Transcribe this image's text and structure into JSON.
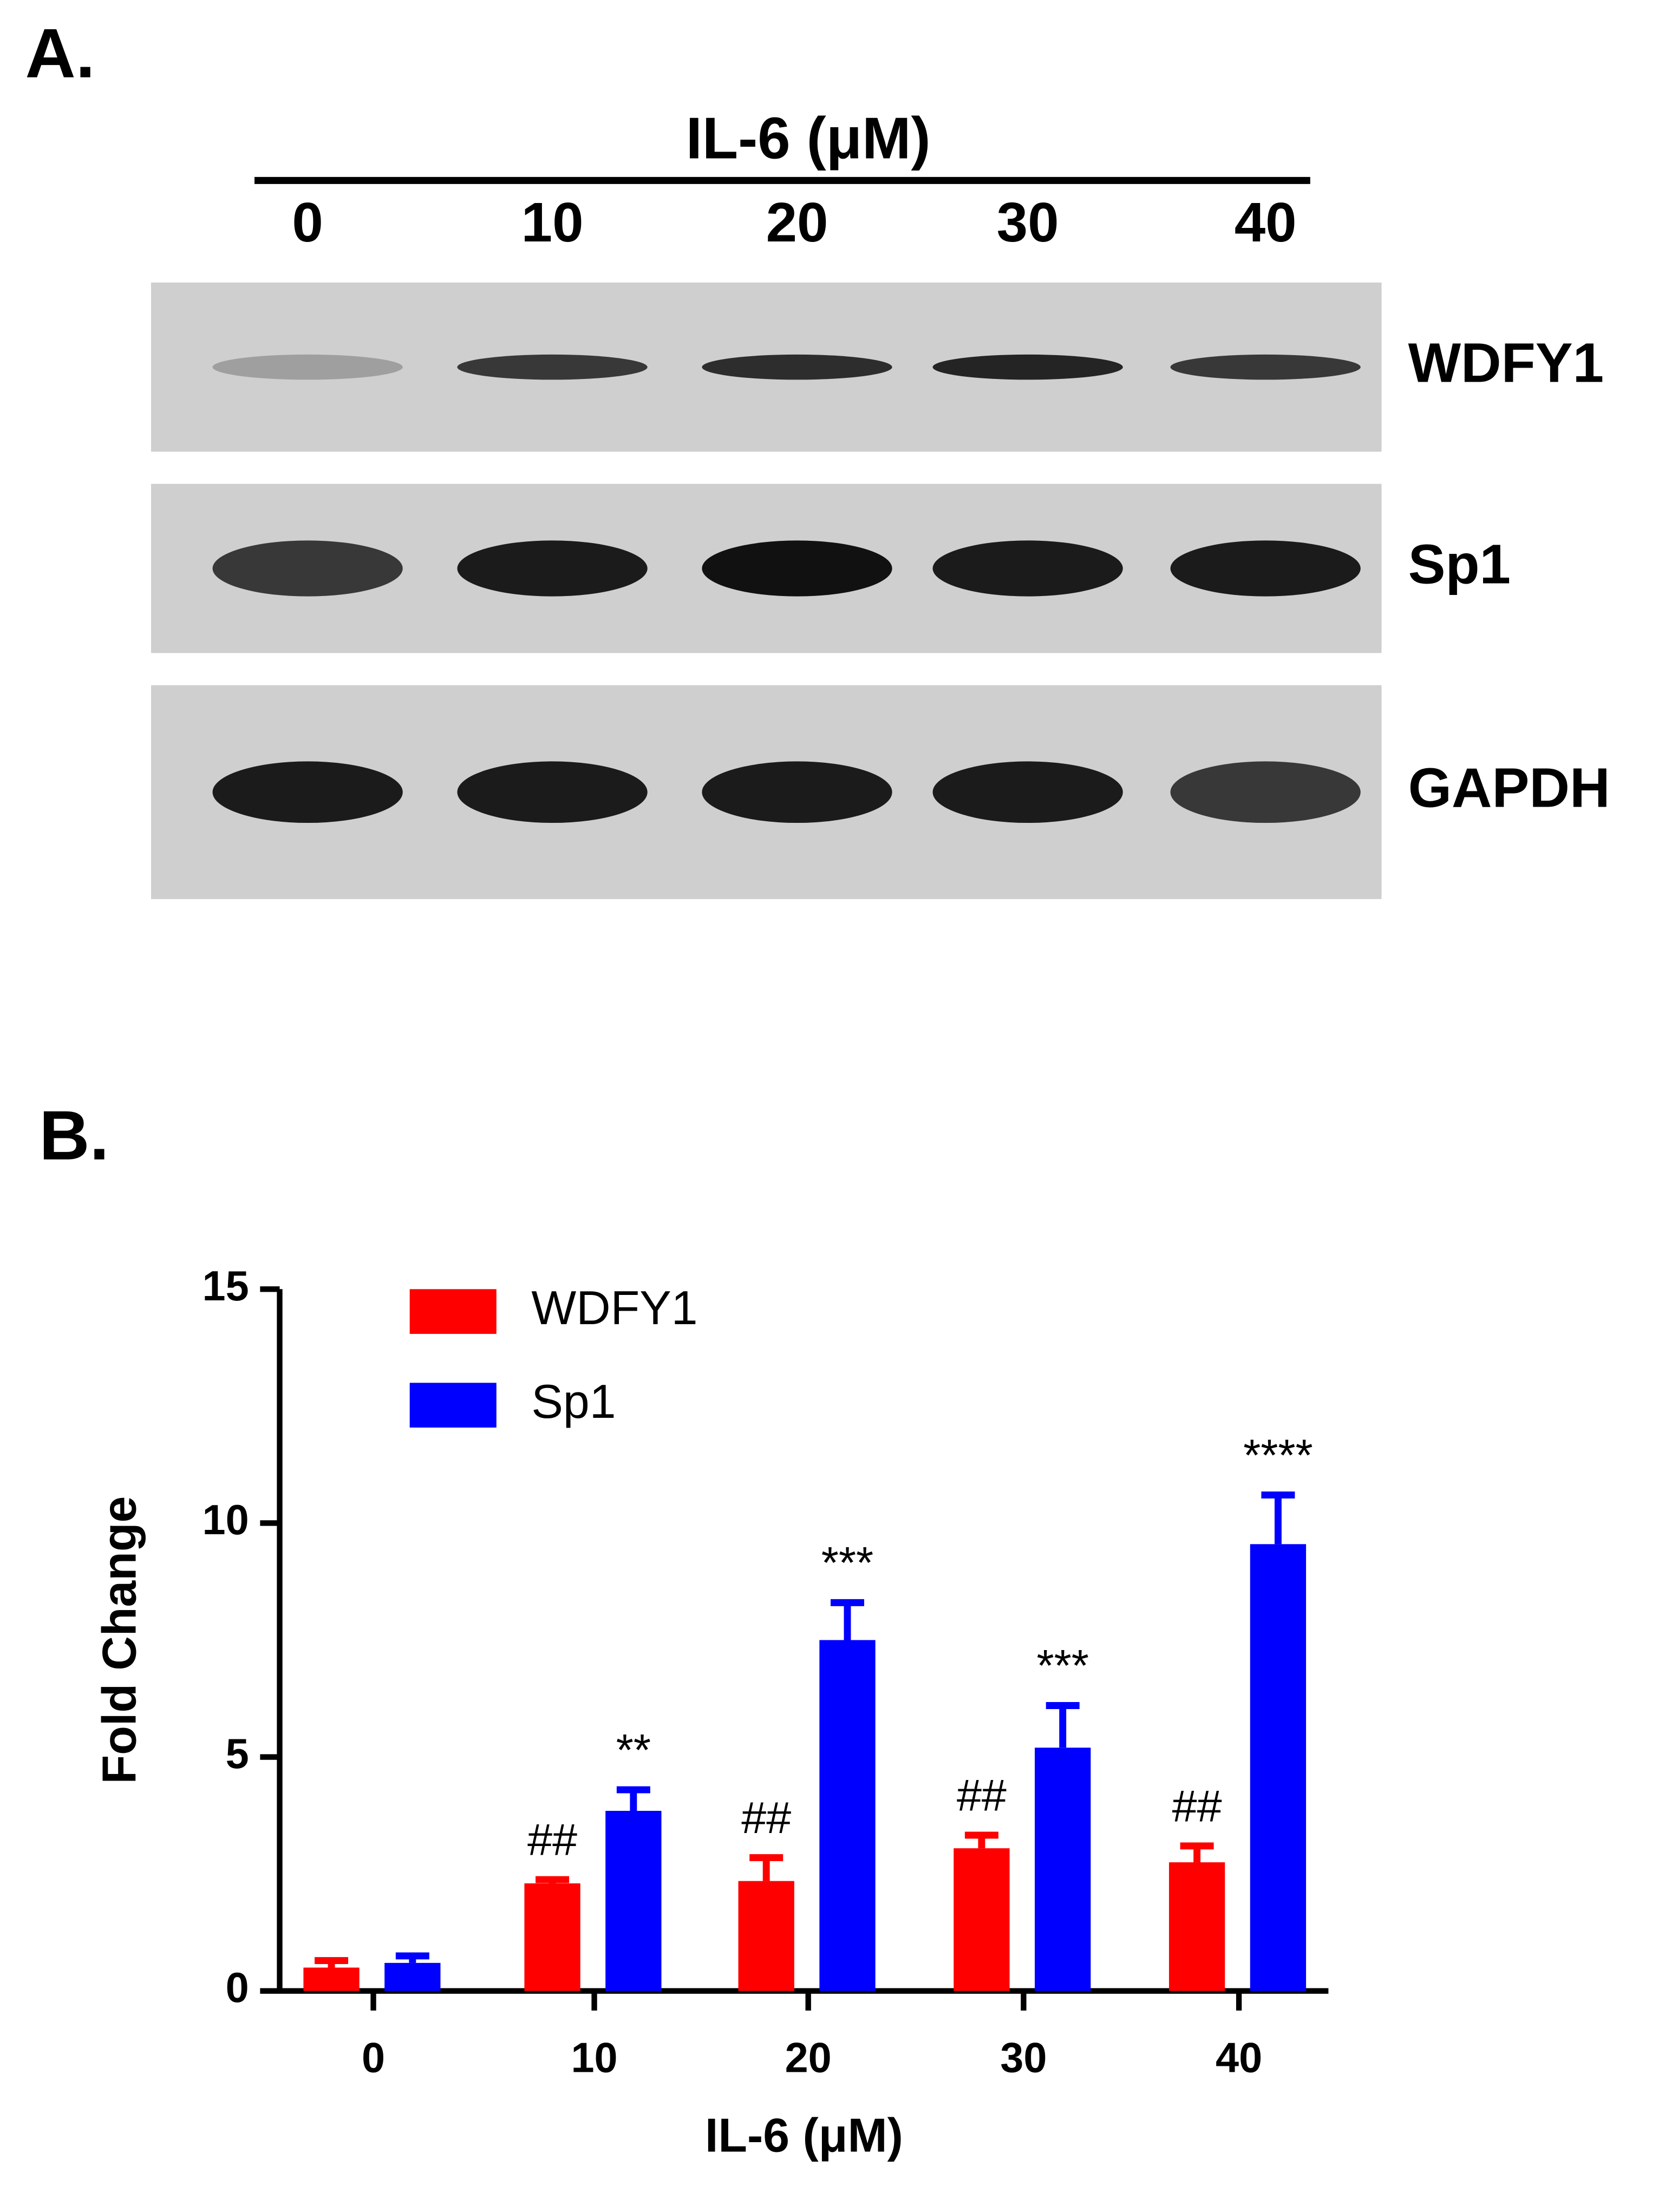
{
  "blot": {
    "label": "A.",
    "header": "IL-6 (μM)",
    "lanes": [
      "0",
      "10",
      "20",
      "30",
      "40"
    ],
    "rows": [
      "WDFY1",
      "Sp1",
      "GAPDH"
    ]
  },
  "chart_data": {
    "type": "bar",
    "label": "B.",
    "xlabel": "IL-6 (μM)",
    "ylabel": "Fold Change",
    "categories": [
      "0",
      "10",
      "20",
      "30",
      "40"
    ],
    "series": [
      {
        "name": "WDFY1",
        "color": "#ff0000",
        "values": [
          0.5,
          2.3,
          2.35,
          3.05,
          2.75
        ],
        "errors": [
          0.15,
          0.08,
          0.5,
          0.28,
          0.35
        ],
        "annotations": [
          null,
          "##",
          "##",
          "##",
          "##"
        ]
      },
      {
        "name": "Sp1",
        "color": "#0000ff",
        "values": [
          0.6,
          3.85,
          7.5,
          5.2,
          9.55
        ],
        "errors": [
          0.15,
          0.45,
          0.8,
          0.9,
          1.05
        ],
        "annotations": [
          null,
          "**",
          "***",
          "***",
          "****"
        ]
      }
    ],
    "ylim": [
      0,
      15
    ],
    "yticks": [
      0,
      5,
      10,
      15
    ]
  }
}
